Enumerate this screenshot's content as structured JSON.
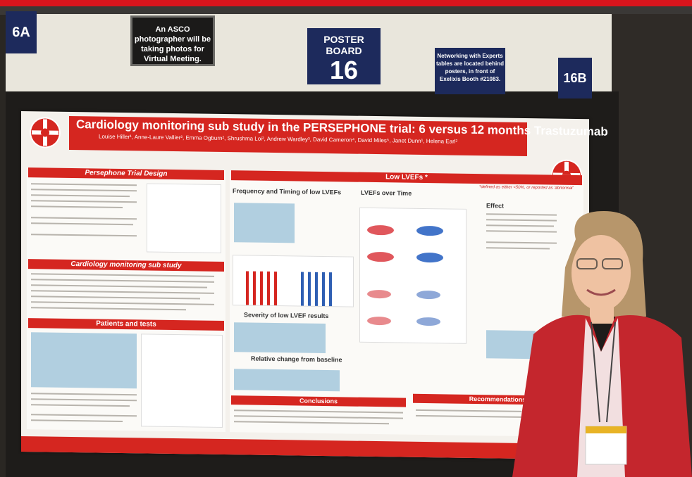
{
  "signs": {
    "left_code": "6A",
    "photographer": "An ASCO photographer will be taking photos for Virtual Meeting.",
    "poster_board_label": "POSTER BOARD",
    "poster_board_number": "16",
    "networking": "Networking with Experts tables are located behind posters, in front of Exelixis Booth #21083.",
    "right_code": "16B"
  },
  "poster": {
    "title": "Cardiology monitoring sub study in the PERSEPHONE trial: 6 versus 12 months Trastuzumab",
    "authors": "Louise Hiller¹, Anne-Laure Vallier², Emma Ogburn², Shrushma Loi², Andrew Wardley³, David Cameron⁴, David Miles⁵, Janet Dunn¹, Helena Earl²",
    "sections": {
      "design": "Persephone Trial Design",
      "substudy": "Cardiology monitoring sub study",
      "patients": "Patients and tests",
      "low_lvefs": "Low LVEFs *",
      "low_lvefs_note": "*defined as either <50%, or reported as 'abnormal'",
      "frequency": "Frequency and Timing of low LVEFs",
      "lvefs_time": "LVEFs over Time",
      "effect": "Effect",
      "severity": "Severity of low LVEF results",
      "relative": "Relative change from baseline",
      "conclusions": "Conclusions",
      "recommendations": "Recommendations"
    }
  },
  "colors": {
    "poster_red": "#d52620",
    "sign_navy": "#1d2a5c",
    "jacket_red": "#c4262d"
  }
}
